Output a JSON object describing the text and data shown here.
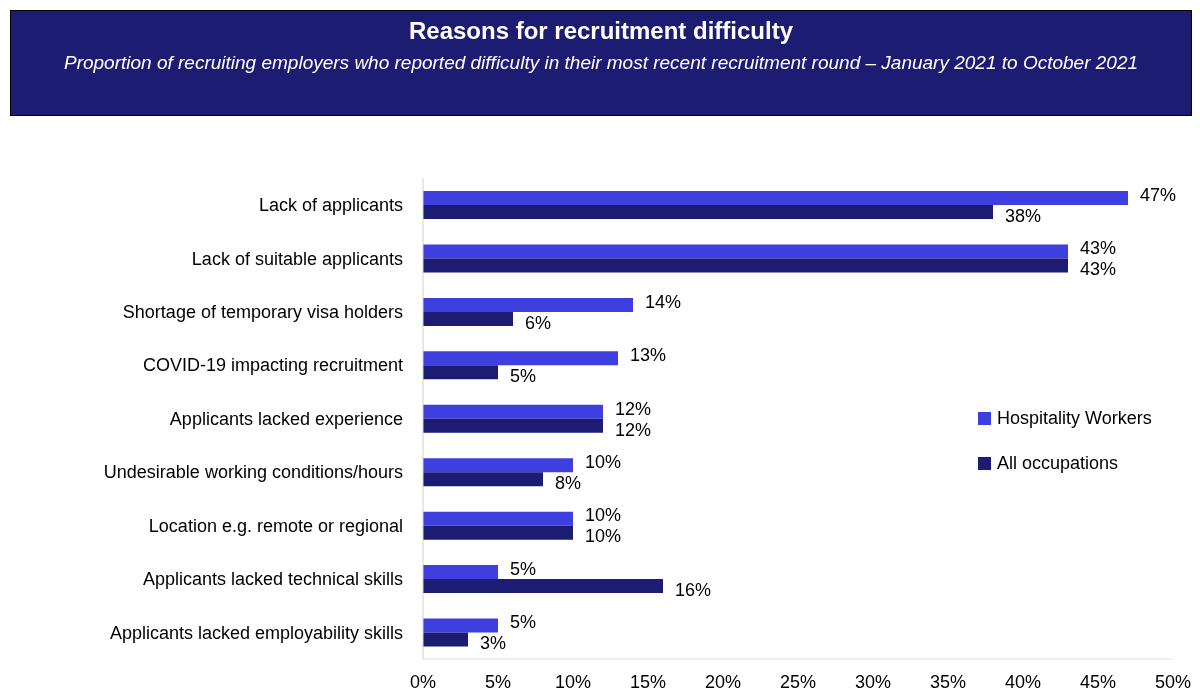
{
  "chart_data": {
    "type": "bar",
    "orientation": "horizontal",
    "title": "Reasons for recruitment difficulty",
    "subtitle": "Proportion of recruiting employers who reported difficulty in their most recent recruitment round – January 2021 to October 2021",
    "categories": [
      "Lack of applicants",
      "Lack of suitable applicants",
      "Shortage of temporary visa holders",
      "COVID-19 impacting recruitment",
      "Applicants lacked experience",
      "Undesirable working conditions/hours",
      "Location e.g. remote or regional",
      "Applicants lacked technical skills",
      "Applicants lacked employability skills"
    ],
    "series": [
      {
        "name": "Hospitality Workers",
        "color": "#3f3fe0",
        "values": [
          47,
          43,
          14,
          13,
          12,
          10,
          10,
          5,
          5
        ],
        "value_labels": [
          "47%",
          "43%",
          "14%",
          "13%",
          "12%",
          "10%",
          "10%",
          "5%",
          "5%"
        ]
      },
      {
        "name": "All occupations",
        "color": "#1c1c73",
        "values": [
          38,
          43,
          6,
          5,
          12,
          8,
          10,
          16,
          3
        ],
        "value_labels": [
          "38%",
          "43%",
          "6%",
          "5%",
          "12%",
          "8%",
          "10%",
          "16%",
          "3%"
        ]
      }
    ],
    "xlim": [
      0,
      50
    ],
    "xticks": [
      {
        "value": 0,
        "label": "0%"
      },
      {
        "value": 5,
        "label": "5%"
      },
      {
        "value": 10,
        "label": "10%"
      },
      {
        "value": 15,
        "label": "15%"
      },
      {
        "value": 20,
        "label": "20%"
      },
      {
        "value": 25,
        "label": "25%"
      },
      {
        "value": 30,
        "label": "30%"
      },
      {
        "value": 35,
        "label": "35%"
      },
      {
        "value": 40,
        "label": "40%"
      },
      {
        "value": 45,
        "label": "45%"
      },
      {
        "value": 50,
        "label": "50%"
      }
    ],
    "grid": false,
    "legend": "right"
  }
}
